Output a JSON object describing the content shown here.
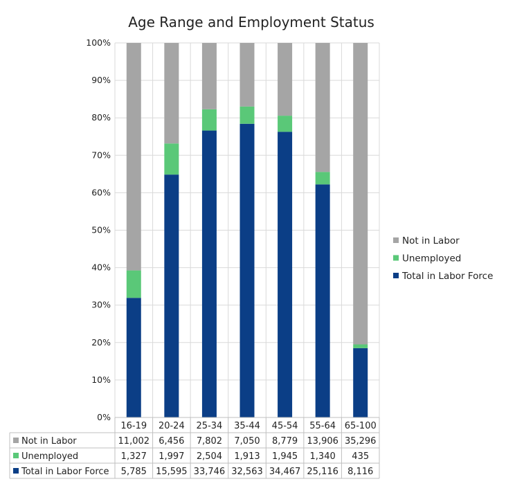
{
  "chart_data": {
    "type": "bar",
    "stacked": "percent",
    "title": "Age Range and Employment Status",
    "xlabel": "",
    "ylabel": "",
    "ylim": [
      0,
      100
    ],
    "yticks": [
      "0%",
      "10%",
      "20%",
      "30%",
      "40%",
      "50%",
      "60%",
      "70%",
      "80%",
      "90%",
      "100%"
    ],
    "categories": [
      "16-19",
      "20-24",
      "25-34",
      "35-44",
      "45-54",
      "55-64",
      "65-100"
    ],
    "series": [
      {
        "name": "Total in Labor Force",
        "color": "#0b3e86",
        "values": [
          5785,
          15595,
          33746,
          32563,
          34467,
          25116,
          8116
        ],
        "labels": [
          "5,785",
          "15,595",
          "33,746",
          "32,563",
          "34,467",
          "25,116",
          "8,116"
        ]
      },
      {
        "name": "Unemployed",
        "color": "#5ac878",
        "values": [
          1327,
          1997,
          2504,
          1913,
          1945,
          1340,
          435
        ],
        "labels": [
          "1,327",
          "1,997",
          "2,504",
          "1,913",
          "1,945",
          "1,340",
          "435"
        ]
      },
      {
        "name": "Not in Labor",
        "color": "#a5a5a5",
        "values": [
          11002,
          6456,
          7802,
          7050,
          8779,
          13906,
          35296
        ],
        "labels": [
          "11,002",
          "6,456",
          "7,802",
          "7,050",
          "8,779",
          "13,906",
          "35,296"
        ]
      }
    ],
    "legend": {
      "position": "right",
      "order": [
        "Not in Labor",
        "Unemployed",
        "Total in Labor Force"
      ]
    },
    "data_table": true,
    "data_table_order": [
      "Not in Labor",
      "Unemployed",
      "Total in Labor Force"
    ],
    "grid": true
  }
}
